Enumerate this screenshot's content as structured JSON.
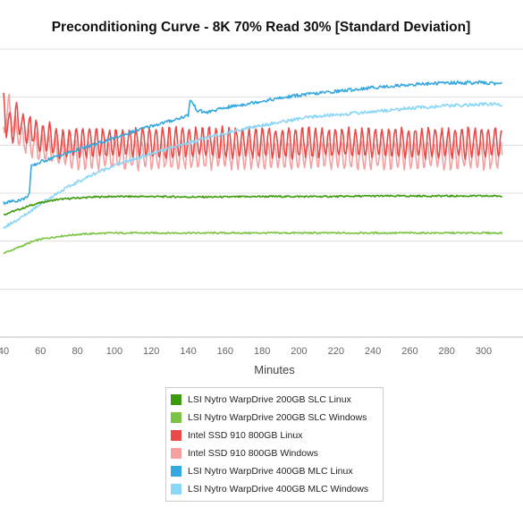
{
  "chart_data": {
    "type": "line",
    "title": "Preconditioning Curve - 8K 70% Read 30% [Standard Deviation]",
    "xlabel": "Minutes",
    "ylabel": "",
    "xlim": [
      40,
      310
    ],
    "ylim": [
      0,
      6
    ],
    "x_ticks": [
      40,
      60,
      80,
      100,
      120,
      140,
      160,
      180,
      200,
      220,
      240,
      260,
      280,
      300
    ],
    "grid": true,
    "legend_position": "bottom",
    "series": [
      {
        "name": "LSI Nytro WarpDrive 200GB SLC Linux",
        "color": "#3d9a0d",
        "x": [
          40,
          45,
          50,
          55,
          60,
          65,
          70,
          80,
          90,
          100,
          120,
          140,
          160,
          180,
          200,
          220,
          240,
          260,
          280,
          300,
          310
        ],
        "y": [
          2.55,
          2.62,
          2.68,
          2.75,
          2.8,
          2.84,
          2.87,
          2.9,
          2.92,
          2.93,
          2.93,
          2.92,
          2.92,
          2.93,
          2.93,
          2.93,
          2.94,
          2.94,
          2.94,
          2.94,
          2.94
        ]
      },
      {
        "name": "LSI Nytro WarpDrive 200GB SLC Windows",
        "color": "#7bc343",
        "x": [
          40,
          45,
          50,
          55,
          60,
          70,
          80,
          90,
          100,
          120,
          140,
          160,
          180,
          200,
          220,
          240,
          260,
          280,
          300,
          310
        ],
        "y": [
          1.75,
          1.82,
          1.9,
          1.98,
          2.04,
          2.1,
          2.14,
          2.16,
          2.17,
          2.17,
          2.17,
          2.17,
          2.17,
          2.17,
          2.17,
          2.17,
          2.17,
          2.17,
          2.17,
          2.17
        ]
      },
      {
        "name": "Intel SSD 910 800GB Linux",
        "color": "#e84a47",
        "x": [
          40,
          41,
          43,
          45,
          47,
          50,
          53,
          56,
          60,
          65,
          70,
          80,
          100,
          120,
          140,
          160,
          180,
          200,
          220,
          240,
          260,
          280,
          300,
          310
        ],
        "y": [
          4.85,
          4.55,
          4.4,
          4.3,
          4.6,
          4.4,
          4.25,
          4.35,
          4.1,
          4.2,
          4.0,
          4.05,
          4.05,
          4.05,
          4.05,
          4.05,
          4.05,
          4.05,
          4.05,
          4.05,
          4.05,
          4.05,
          4.05,
          4.05
        ],
        "oscillation": 0.3
      },
      {
        "name": "Intel SSD 910 800GB Windows",
        "color": "#f4a0a0",
        "x": [
          40,
          43,
          46,
          50,
          55,
          60,
          70,
          80,
          100,
          120,
          140,
          160,
          180,
          200,
          220,
          240,
          260,
          280,
          300,
          310
        ],
        "y": [
          4.4,
          4.75,
          4.35,
          4.15,
          4.05,
          3.95,
          3.85,
          3.8,
          3.8,
          3.8,
          3.8,
          3.8,
          3.8,
          3.8,
          3.8,
          3.8,
          3.8,
          3.8,
          3.8,
          3.8
        ],
        "oscillation": 0.28
      },
      {
        "name": "LSI Nytro WarpDrive 400GB MLC Linux",
        "color": "#35a8e0",
        "x": [
          40,
          45,
          50,
          52,
          54,
          55,
          60,
          70,
          80,
          90,
          100,
          110,
          120,
          130,
          140,
          141,
          145,
          150,
          160,
          180,
          200,
          220,
          240,
          260,
          280,
          300,
          310
        ],
        "y": [
          2.8,
          2.83,
          2.87,
          2.9,
          3.0,
          3.55,
          3.65,
          3.78,
          3.9,
          4.02,
          4.15,
          4.28,
          4.4,
          4.5,
          4.62,
          4.95,
          4.72,
          4.68,
          4.78,
          4.92,
          5.04,
          5.12,
          5.2,
          5.26,
          5.3,
          5.3,
          5.28
        ]
      },
      {
        "name": "LSI Nytro WarpDrive 400GB MLC Windows",
        "color": "#8ad6f6",
        "x": [
          40,
          50,
          60,
          70,
          80,
          90,
          100,
          110,
          120,
          130,
          140,
          150,
          160,
          170,
          180,
          190,
          200,
          210,
          220,
          240,
          260,
          280,
          300,
          310
        ],
        "y": [
          2.28,
          2.5,
          2.78,
          3.02,
          3.23,
          3.42,
          3.58,
          3.7,
          3.82,
          3.93,
          4.05,
          4.15,
          4.25,
          4.34,
          4.42,
          4.48,
          4.55,
          4.6,
          4.63,
          4.7,
          4.77,
          4.82,
          4.85,
          4.85
        ]
      }
    ]
  }
}
